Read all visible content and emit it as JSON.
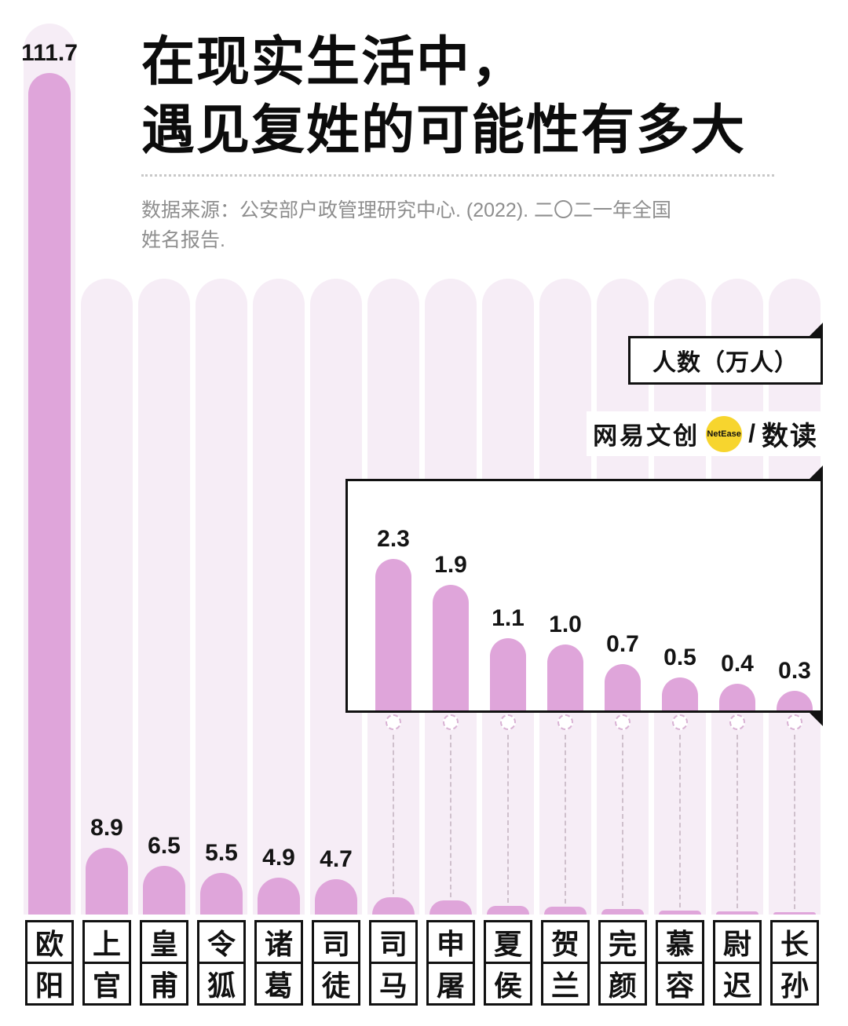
{
  "title": {
    "lines": [
      "在现实生活中，",
      "遇见复姓的可能性有多大"
    ]
  },
  "source": {
    "lines": [
      "数据来源：公安部户政管理研究中心. (2022). 二〇二一年全国",
      "姓名报告."
    ]
  },
  "unit_box": {
    "label": "人数（万人）"
  },
  "logo": {
    "brand": "网易文创",
    "badge": "NetEase",
    "divider": "/",
    "product": "数读"
  },
  "colors": {
    "bar_fill": "#dfa5da",
    "bar_track": "#f6edf6",
    "badge_yellow": "#f7d52e",
    "text_gray": "#8e8e8e",
    "ink": "#111111"
  },
  "chart_data": {
    "type": "bar",
    "title": "在现实生活中，遇见复姓的可能性有多大",
    "ylabel": "人数（万人）",
    "unit": "万人",
    "categories": [
      "欧阳",
      "上官",
      "皇甫",
      "令狐",
      "诸葛",
      "司徒",
      "司马",
      "申屠",
      "夏侯",
      "贺兰",
      "完颜",
      "慕容",
      "尉迟",
      "长孙"
    ],
    "values": [
      111.7,
      8.9,
      6.5,
      5.5,
      4.9,
      4.7,
      2.3,
      1.9,
      1.1,
      1.0,
      0.7,
      0.5,
      0.4,
      0.3
    ],
    "value_labels": [
      "111.7",
      "8.9",
      "6.5",
      "5.5",
      "4.9",
      "4.7",
      "2.3",
      "1.9",
      "1.1",
      "1.0",
      "0.7",
      "0.5",
      "0.4",
      "0.3"
    ],
    "labeled_on_main": 6,
    "grid": false,
    "legend": "none",
    "inset": {
      "note": "magnified view of the 8 smallest bars",
      "categories": [
        "司马",
        "申屠",
        "夏侯",
        "贺兰",
        "完颜",
        "慕容",
        "尉迟",
        "长孙"
      ],
      "values": [
        2.3,
        1.9,
        1.1,
        1.0,
        0.7,
        0.5,
        0.4,
        0.3
      ],
      "value_labels": [
        "2.3",
        "1.9",
        "1.1",
        "1.0",
        "0.7",
        "0.5",
        "0.4",
        "0.3"
      ]
    }
  }
}
